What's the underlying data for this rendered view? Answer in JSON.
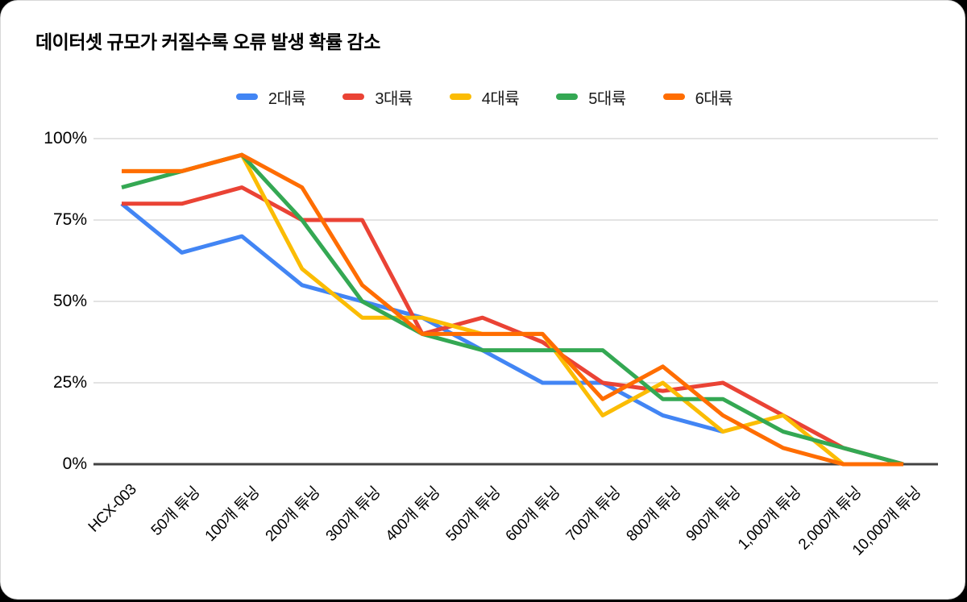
{
  "chart": {
    "title": "데이터셋 규모가 커질수록 오류 발생 확률 감소"
  },
  "chart_data": {
    "type": "line",
    "title": "데이터셋 규모가 커질수록 오류 발생 확률 감소",
    "categories": [
      "HCX-003",
      "50개 튜닝",
      "100개 튜닝",
      "200개 튜닝",
      "300개 튜닝",
      "400개 튜닝",
      "500개 튜닝",
      "600개 튜닝",
      "700개 튜닝",
      "800개 튜닝",
      "900개 튜닝",
      "1,000개 튜닝",
      "2,000개 튜닝",
      "10,000개 튜닝"
    ],
    "series": [
      {
        "name": "2대륙",
        "color": "#4285F4",
        "values": [
          80,
          65,
          70,
          55,
          50,
          45,
          35,
          25,
          25,
          15,
          10,
          null,
          null,
          null
        ]
      },
      {
        "name": "3대륙",
        "color": "#EA4335",
        "values": [
          80,
          80,
          85,
          75,
          75,
          40,
          45,
          37.5,
          25,
          22.5,
          25,
          15,
          5,
          0
        ]
      },
      {
        "name": "4대륙",
        "color": "#FBBC04",
        "values": [
          90,
          90,
          95,
          60,
          45,
          45,
          40,
          40,
          15,
          25,
          10,
          15,
          0,
          0
        ]
      },
      {
        "name": "5대륙",
        "color": "#34A853",
        "values": [
          85,
          90,
          95,
          75,
          50,
          40,
          35,
          35,
          35,
          20,
          20,
          10,
          5,
          0
        ]
      },
      {
        "name": "6대륙",
        "color": "#FF6D01",
        "values": [
          90,
          90,
          95,
          85,
          55,
          40,
          40,
          40,
          20,
          30,
          15,
          5,
          0,
          0
        ]
      }
    ],
    "xlabel": "",
    "ylabel": "",
    "y_tick_labels": [
      "0%",
      "25%",
      "50%",
      "75%",
      "100%"
    ],
    "y_ticks": [
      0,
      25,
      50,
      75,
      100
    ],
    "ylim": [
      0,
      100
    ],
    "grid": true,
    "legend_position": "top"
  },
  "colors": {
    "page_background": "#000000",
    "card_background": "#ffffff",
    "gridline": "#e3e3e3",
    "baseline": "#424242",
    "text": "#000000"
  }
}
